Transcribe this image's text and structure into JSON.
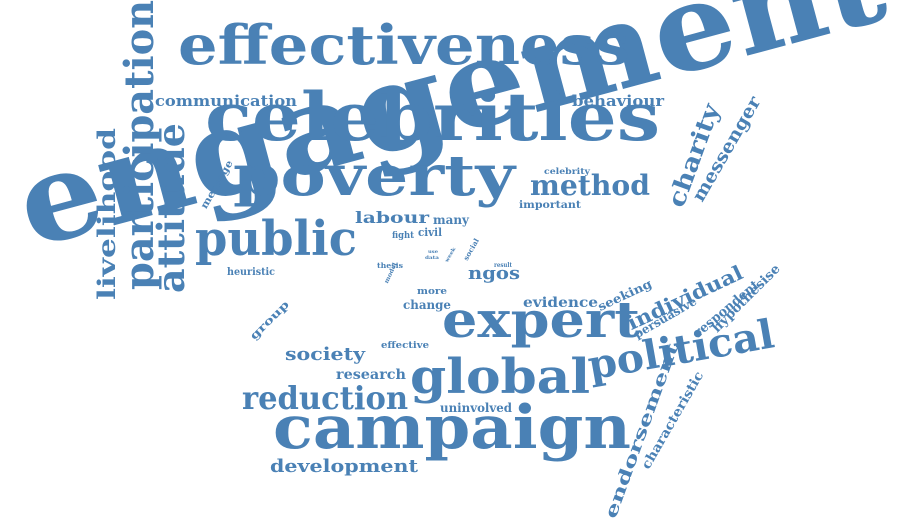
{
  "color": "#4a81b5",
  "words": [
    {
      "text": "engagement"
    },
    {
      "text": "celebrities"
    },
    {
      "text": "effectiveness"
    },
    {
      "text": "poverty"
    },
    {
      "text": "campaign"
    },
    {
      "text": "expert"
    },
    {
      "text": "global"
    },
    {
      "text": "public"
    },
    {
      "text": "political"
    },
    {
      "text": "participation"
    },
    {
      "text": "attitude"
    },
    {
      "text": "reduction"
    },
    {
      "text": "livelihood"
    },
    {
      "text": "method"
    },
    {
      "text": "charity"
    },
    {
      "text": "messenger"
    },
    {
      "text": "development"
    },
    {
      "text": "individual"
    },
    {
      "text": "endorsement"
    },
    {
      "text": "society"
    },
    {
      "text": "communication"
    },
    {
      "text": "behaviour"
    },
    {
      "text": "labour"
    },
    {
      "text": "ngos"
    },
    {
      "text": "research"
    },
    {
      "text": "evidence"
    },
    {
      "text": "hypothesise"
    },
    {
      "text": "persuasive"
    },
    {
      "text": "respondent"
    },
    {
      "text": "characteristic"
    },
    {
      "text": "seeking"
    },
    {
      "text": "uninvolved"
    },
    {
      "text": "change"
    },
    {
      "text": "message"
    },
    {
      "text": "heuristic"
    },
    {
      "text": "group"
    },
    {
      "text": "many"
    },
    {
      "text": "civil"
    },
    {
      "text": "fight"
    },
    {
      "text": "important"
    },
    {
      "text": "celebrity"
    },
    {
      "text": "effective"
    },
    {
      "text": "more"
    },
    {
      "text": "thesis"
    },
    {
      "text": "model"
    },
    {
      "text": "social"
    },
    {
      "text": "data"
    },
    {
      "text": "result"
    },
    {
      "text": "use"
    },
    {
      "text": "week"
    }
  ]
}
